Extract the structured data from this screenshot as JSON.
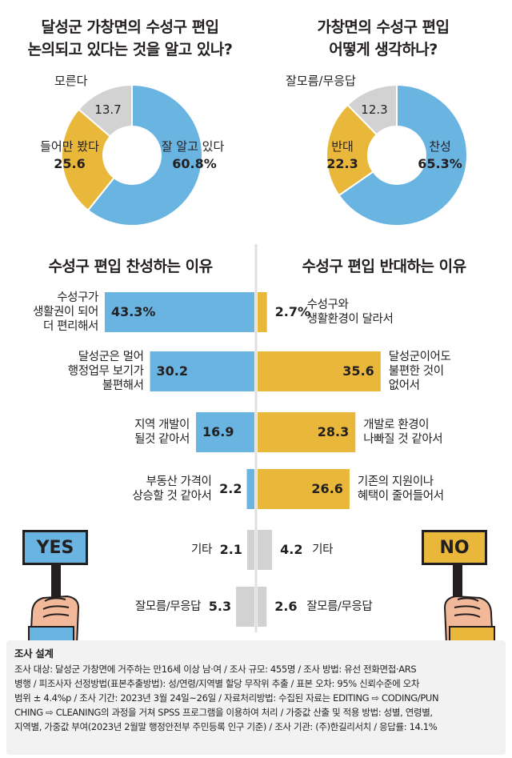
{
  "poll1": {
    "title_line1": "달성군 가창면의 수성구 편입",
    "title_line2": "논의되고 있다는 것을 알고 있나?"
  },
  "poll2": {
    "title_line1": "가창면의 수성구 편입",
    "title_line2": "어떻게 생각하나?"
  },
  "signs": {
    "yes": "YES",
    "no": "NO"
  },
  "survey": {
    "heading": "조사 설계",
    "lines": [
      "조사 대상: 달성군 가창면에 거주하는 만16세 이상 남·여 / 조사 규모: 455명 / 조사 방법: 유선 전화면접·ARS",
      "병행 / 피조사자 선정방법(표본추출방법): 성/연령/지역별 할당 무작위 추출 / 표본 오차: 95% 신뢰수준에 오차",
      "범위 ± 4.4%p / 조사 기간: 2023년 3월 24일~26일 / 자료처리방법: 수집된 자료는 EDITING ⇨ CODING/PUN",
      "CHING ⇨ CLEANING의 과정을 거쳐 SPSS 프로그램을 이용하여 처리 / 가중값 산출 및 적용 방법: 성별, 연령별,",
      "지역별, 가중값 부여(2023년 2월말 행정안전부 주민등록 인구 기준) / 조사 기관: (주)한길리서치 / 응답률: 14.1%"
    ]
  },
  "colors": {
    "blue": "#6ab4e2",
    "yellow": "#e9b73a",
    "gray": "#d2d2d2",
    "text": "#231f20"
  },
  "chart_data": [
    {
      "type": "pie",
      "title": "달성군 가창면의 수성구 편입 논의되고 있다는 것을 알고 있나?",
      "labels": [
        "잘 알고 있다",
        "들어만 봤다",
        "모른다"
      ],
      "values": [
        60.8,
        25.6,
        13.7
      ],
      "display": [
        "60.8%",
        "25.6",
        "13.7"
      ]
    },
    {
      "type": "pie",
      "title": "가창면의 수성구 편입 어떻게 생각하나?",
      "labels": [
        "찬성",
        "반대",
        "잘모름/무응답"
      ],
      "values": [
        65.3,
        22.3,
        12.3
      ],
      "display": [
        "65.3%",
        "22.3",
        "12.3"
      ]
    },
    {
      "type": "bar",
      "title": "수성구 편입 찬성하는 이유",
      "categories": [
        "수성구가 생활권이 되어 더 편리해서",
        "달성군은 멀어 행정업무 보기가 불편해서",
        "지역 개발이 될것 같아서",
        "부동산 가격이 상승할 것 같아서",
        "기타",
        "잘모름/무응답"
      ],
      "category_lines": [
        [
          "수성구가",
          "생활권이 되어",
          "더 편리해서"
        ],
        [
          "달성군은 멀어",
          "행정업무 보기가",
          "불편해서"
        ],
        [
          "지역 개발이",
          "될것 같아서"
        ],
        [
          "부동산 가격이",
          "상승할 것 같아서"
        ],
        [
          "기타"
        ],
        [
          "잘모름/무응답"
        ]
      ],
      "values": [
        43.3,
        30.2,
        16.9,
        2.2,
        2.1,
        5.3
      ],
      "display": [
        "43.3%",
        "30.2",
        "16.9",
        "2.2",
        "2.1",
        "5.3"
      ]
    },
    {
      "type": "bar",
      "title": "수성구 편입 반대하는 이유",
      "categories": [
        "수성구와 생활환경이 달라서",
        "달성군이어도 불편한 것이 없어서",
        "개발로 환경이 나빠질 것 같아서",
        "기존의 지원이나 혜택이 줄어들어서",
        "기타",
        "잘모름/무응답"
      ],
      "category_lines": [
        [
          "수성구와",
          "생활환경이 달라서"
        ],
        [
          "달성군이어도",
          "불편한 것이",
          "없어서"
        ],
        [
          "개발로 환경이",
          "나빠질 것 같아서"
        ],
        [
          "기존의 지원이나",
          "혜택이 줄어들어서"
        ],
        [
          "기타"
        ],
        [
          "잘모름/무응답"
        ]
      ],
      "values": [
        2.7,
        35.6,
        28.3,
        26.6,
        4.2,
        2.6
      ],
      "display": [
        "2.7%",
        "35.6",
        "28.3",
        "26.6",
        "4.2",
        "2.6"
      ]
    }
  ]
}
